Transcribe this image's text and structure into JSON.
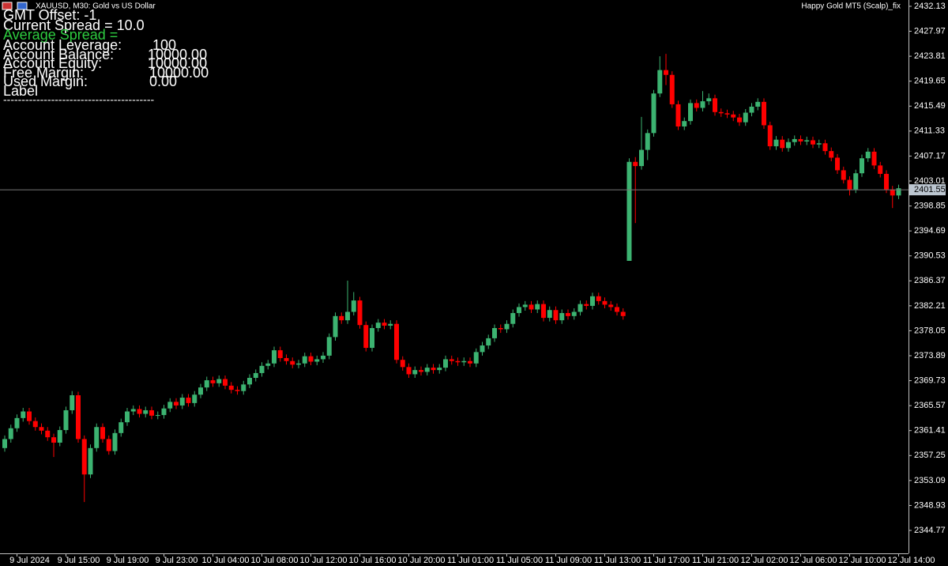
{
  "header": {
    "symbol": "XAUUSD, M30:  Gold vs US Dollar",
    "expert": "Happy Gold MT5 (Scalp)_fix"
  },
  "info_panel": {
    "gmt_offset": "GMT Offset: -1",
    "current_spread": "Current Spread = 10.0",
    "average_spread": "Average Spread =",
    "rows": [
      [
        "Account Leverage:",
        "100"
      ],
      [
        "Account Balance:",
        "10000.00"
      ],
      [
        "Account Equity:",
        "10000.00"
      ],
      [
        "Free Margin:",
        "10000.00"
      ],
      [
        "Used Margin:",
        "0.00"
      ]
    ],
    "label": "Label",
    "separator": "-----------------------------------------"
  },
  "chart_data": {
    "type": "candlestick",
    "up_color": "#3cb371",
    "down_color": "#ff0000",
    "grid": false,
    "ylim": [
      2340.95,
      2433.18
    ],
    "yticks": [
      2432.13,
      2427.97,
      2423.81,
      2419.65,
      2415.49,
      2411.33,
      2407.17,
      2403.01,
      2398.85,
      2394.69,
      2390.53,
      2386.37,
      2382.21,
      2378.05,
      2373.89,
      2369.73,
      2365.57,
      2361.41,
      2357.25,
      2353.09,
      2348.93,
      2344.77
    ],
    "xticks": [
      {
        "value": 2,
        "label": "9 Jul 2024"
      },
      {
        "value": 10,
        "label": "9 Jul 15:00"
      },
      {
        "value": 18,
        "label": "9 Jul 19:00"
      },
      {
        "value": 26,
        "label": "9 Jul 23:00"
      },
      {
        "value": 34,
        "label": "10 Jul 04:00"
      },
      {
        "value": 42,
        "label": "10 Jul 08:00"
      },
      {
        "value": 50,
        "label": "10 Jul 12:00"
      },
      {
        "value": 58,
        "label": "10 Jul 16:00"
      },
      {
        "value": 66,
        "label": "10 Jul 20:00"
      },
      {
        "value": 74,
        "label": "11 Jul 01:00"
      },
      {
        "value": 82,
        "label": "11 Jul 05:00"
      },
      {
        "value": 90,
        "label": "11 Jul 09:00"
      },
      {
        "value": 98,
        "label": "11 Jul 13:00"
      },
      {
        "value": 106,
        "label": "11 Jul 17:00"
      },
      {
        "value": 114,
        "label": "11 Jul 21:00"
      },
      {
        "value": 122,
        "label": "12 Jul 02:00"
      },
      {
        "value": 130,
        "label": "12 Jul 06:00"
      },
      {
        "value": 138,
        "label": "12 Jul 10:00"
      },
      {
        "value": 146,
        "label": "12 Jul 14:00"
      }
    ],
    "last_price": 2401.55,
    "open": [
      2358.5,
      2360.0,
      2361.8,
      2363.5,
      2364.6,
      2363.0,
      2362.0,
      2361.4,
      2360.3,
      2359.4,
      2361.5,
      2364.8,
      2367.3,
      2360.0,
      2354.1,
      2358.5,
      2362.0,
      2360.0,
      2358.0,
      2361.0,
      2362.8,
      2364.6,
      2365.0,
      2364.2,
      2364.8,
      2363.9,
      2364.0,
      2365.1,
      2366.2,
      2365.6,
      2366.9,
      2366.0,
      2367.4,
      2368.6,
      2369.8,
      2369.3,
      2370.0,
      2368.9,
      2368.2,
      2368.0,
      2369.1,
      2370.2,
      2371.0,
      2372.2,
      2372.6,
      2374.8,
      2373.5,
      2373.0,
      2372.4,
      2372.6,
      2373.8,
      2372.9,
      2373.3,
      2373.9,
      2377.0,
      2380.5,
      2379.8,
      2381.2,
      2383.1,
      2379.0,
      2375.2,
      2378.5,
      2379.4,
      2378.9,
      2379.2,
      2373.2,
      2372.0,
      2370.8,
      2371.5,
      2371.2,
      2371.9,
      2371.5,
      2371.9,
      2373.3,
      2373.0,
      2372.8,
      2373.0,
      2372.6,
      2374.5,
      2375.6,
      2376.8,
      2378.5,
      2378.3,
      2379.2,
      2381.0,
      2382.0,
      2382.4,
      2381.6,
      2382.5,
      2380.2,
      2381.5,
      2379.8,
      2381.0,
      2380.5,
      2381.2,
      2382.5,
      2382.2,
      2383.8,
      2383.0,
      2382.4,
      2382.0,
      2381.2,
      2389.7,
      2406.2,
      2405.5,
      2408.2,
      2411.0,
      2417.6,
      2421.5,
      2420.7,
      2415.8,
      2412.1,
      2413.0,
      2416.0,
      2415.2,
      2416.3,
      2416.8,
      2414.5,
      2414.3,
      2414.1,
      2413.6,
      2412.8,
      2414.4,
      2415.4,
      2416.2,
      2412.3,
      2408.8,
      2409.9,
      2408.5,
      2409.5,
      2410.0,
      2409.6,
      2409.8,
      2409.1,
      2409.3,
      2408.0,
      2406.9,
      2404.8,
      2403.2,
      2401.6,
      2404.3,
      2406.8,
      2407.9,
      2405.6,
      2404.2,
      2401.6,
      2400.6
    ],
    "high": [
      2360.6,
      2362.4,
      2364.1,
      2365.2,
      2365.2,
      2363.6,
      2362.6,
      2362.0,
      2360.9,
      2362.1,
      2365.4,
      2368.0,
      2367.9,
      2360.6,
      2359.1,
      2362.6,
      2362.6,
      2360.6,
      2361.6,
      2363.4,
      2365.2,
      2365.6,
      2365.6,
      2365.4,
      2365.4,
      2364.6,
      2365.7,
      2366.8,
      2366.8,
      2367.5,
      2367.5,
      2368.0,
      2369.2,
      2370.4,
      2370.4,
      2370.6,
      2370.6,
      2369.5,
      2368.8,
      2369.7,
      2370.8,
      2371.6,
      2372.8,
      2373.2,
      2375.4,
      2375.4,
      2374.1,
      2373.6,
      2373.2,
      2374.4,
      2374.4,
      2373.9,
      2374.5,
      2377.6,
      2381.1,
      2381.1,
      2386.4,
      2384.5,
      2383.7,
      2379.6,
      2379.1,
      2380.0,
      2380.0,
      2379.8,
      2379.8,
      2373.8,
      2372.6,
      2372.1,
      2372.1,
      2372.5,
      2372.5,
      2372.5,
      2373.9,
      2373.9,
      2373.6,
      2373.6,
      2373.6,
      2375.1,
      2376.2,
      2377.4,
      2379.1,
      2379.1,
      2379.8,
      2381.6,
      2382.6,
      2383.0,
      2383.0,
      2383.1,
      2383.1,
      2382.1,
      2382.1,
      2381.6,
      2381.6,
      2381.8,
      2383.1,
      2383.1,
      2384.4,
      2384.4,
      2383.6,
      2383.0,
      2382.6,
      2381.8,
      2406.8,
      2407.0,
      2413.7,
      2411.6,
      2418.2,
      2423.8,
      2424.2,
      2421.3,
      2416.4,
      2413.6,
      2416.6,
      2416.6,
      2418.0,
      2417.6,
      2417.4,
      2415.1,
      2414.9,
      2414.7,
      2414.2,
      2415.0,
      2416.0,
      2416.8,
      2416.8,
      2412.9,
      2410.5,
      2410.5,
      2410.1,
      2410.6,
      2410.6,
      2410.4,
      2410.4,
      2409.9,
      2409.9,
      2408.6,
      2407.5,
      2405.4,
      2403.8,
      2404.9,
      2407.4,
      2408.5,
      2408.5,
      2406.2,
      2404.8,
      2402.2,
      2402.4
    ],
    "low": [
      2357.9,
      2359.4,
      2361.2,
      2362.9,
      2362.4,
      2361.4,
      2360.8,
      2359.7,
      2357.0,
      2358.8,
      2360.9,
      2364.2,
      2359.4,
      2349.5,
      2353.5,
      2357.9,
      2359.4,
      2357.4,
      2357.4,
      2360.4,
      2362.2,
      2364.0,
      2363.6,
      2363.6,
      2363.3,
      2363.3,
      2363.4,
      2364.5,
      2365.0,
      2365.0,
      2365.4,
      2365.4,
      2366.8,
      2368.0,
      2368.7,
      2368.7,
      2368.3,
      2367.6,
      2367.4,
      2367.4,
      2368.5,
      2369.6,
      2370.4,
      2371.6,
      2372.0,
      2372.9,
      2372.4,
      2371.8,
      2371.8,
      2372.0,
      2372.3,
      2372.3,
      2372.7,
      2373.3,
      2376.4,
      2379.2,
      2379.2,
      2380.6,
      2378.4,
      2374.6,
      2374.6,
      2377.9,
      2378.3,
      2378.3,
      2372.6,
      2371.4,
      2370.2,
      2370.2,
      2370.6,
      2370.6,
      2370.9,
      2370.9,
      2371.3,
      2372.4,
      2372.2,
      2372.2,
      2372.0,
      2372.0,
      2373.9,
      2375.0,
      2376.2,
      2377.7,
      2377.7,
      2378.6,
      2380.4,
      2381.4,
      2381.0,
      2381.0,
      2379.6,
      2379.6,
      2379.2,
      2379.2,
      2379.9,
      2379.9,
      2380.6,
      2381.6,
      2381.6,
      2382.4,
      2381.8,
      2381.4,
      2380.6,
      2379.9,
      2389.7,
      2396.0,
      2404.9,
      2406.5,
      2410.4,
      2417.0,
      2419.0,
      2415.2,
      2411.5,
      2411.5,
      2412.4,
      2414.6,
      2414.6,
      2415.7,
      2413.9,
      2413.7,
      2413.5,
      2413.0,
      2412.2,
      2412.2,
      2413.8,
      2414.8,
      2411.7,
      2408.2,
      2408.2,
      2407.9,
      2407.9,
      2408.9,
      2409.0,
      2409.0,
      2408.5,
      2408.5,
      2407.4,
      2406.3,
      2404.2,
      2402.6,
      2400.6,
      2401.0,
      2403.7,
      2406.2,
      2405.0,
      2403.6,
      2401.0,
      2398.5,
      2400.0
    ],
    "close": [
      2360.0,
      2361.8,
      2363.5,
      2364.6,
      2363.0,
      2362.0,
      2361.4,
      2360.3,
      2359.4,
      2361.5,
      2364.8,
      2367.3,
      2360.0,
      2354.1,
      2358.5,
      2362.0,
      2360.0,
      2358.0,
      2361.0,
      2362.8,
      2364.6,
      2365.0,
      2364.2,
      2364.8,
      2363.9,
      2364.0,
      2365.1,
      2366.2,
      2365.6,
      2366.9,
      2366.0,
      2367.4,
      2368.6,
      2369.8,
      2369.3,
      2370.0,
      2368.9,
      2368.2,
      2368.0,
      2369.1,
      2370.2,
      2371.0,
      2372.2,
      2372.6,
      2374.8,
      2373.5,
      2373.0,
      2372.4,
      2372.6,
      2373.8,
      2372.9,
      2373.3,
      2373.9,
      2377.0,
      2380.5,
      2379.8,
      2381.2,
      2383.1,
      2379.0,
      2375.2,
      2378.5,
      2379.4,
      2378.9,
      2379.2,
      2373.2,
      2372.0,
      2370.8,
      2371.5,
      2371.2,
      2371.9,
      2371.5,
      2371.9,
      2373.3,
      2373.0,
      2372.8,
      2373.0,
      2372.6,
      2374.5,
      2375.6,
      2376.8,
      2378.5,
      2378.3,
      2379.2,
      2381.0,
      2382.0,
      2382.4,
      2381.6,
      2382.5,
      2380.2,
      2381.5,
      2379.8,
      2381.0,
      2380.5,
      2381.2,
      2382.5,
      2382.2,
      2383.8,
      2383.0,
      2382.4,
      2382.0,
      2381.2,
      2380.5,
      2406.2,
      2405.5,
      2408.2,
      2411.0,
      2417.6,
      2421.5,
      2420.7,
      2415.8,
      2412.1,
      2413.0,
      2416.0,
      2415.2,
      2416.3,
      2416.8,
      2414.5,
      2414.3,
      2414.1,
      2413.6,
      2412.8,
      2414.4,
      2415.4,
      2416.2,
      2412.3,
      2408.8,
      2409.9,
      2408.5,
      2409.5,
      2410.0,
      2409.6,
      2409.8,
      2409.1,
      2409.3,
      2408.0,
      2406.9,
      2404.8,
      2403.2,
      2401.6,
      2404.3,
      2406.8,
      2407.9,
      2405.6,
      2404.2,
      2401.6,
      2400.6,
      2401.8
    ]
  }
}
